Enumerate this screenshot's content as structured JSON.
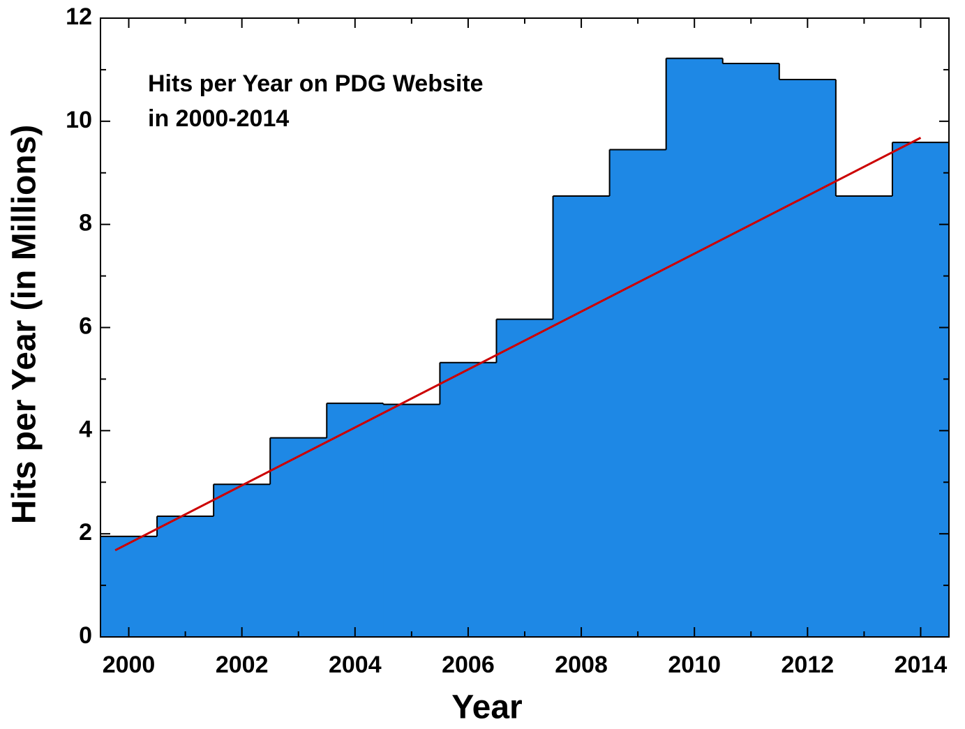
{
  "chart_data": {
    "type": "step",
    "title_lines": [
      "Hits per Year on PDG Website",
      "in 2000-2014"
    ],
    "x_label": "Year",
    "y_label": "Hits per Year (in Millions)",
    "x": [
      2000,
      2001,
      2002,
      2003,
      2004,
      2005,
      2006,
      2007,
      2008,
      2009,
      2010,
      2011,
      2012,
      2013,
      2014
    ],
    "values": [
      1.95,
      2.34,
      2.96,
      3.86,
      4.53,
      4.51,
      5.32,
      6.16,
      8.55,
      9.45,
      11.22,
      11.12,
      10.81,
      8.55,
      9.59
    ],
    "color": "#1e88e5",
    "trend": {
      "x": [
        1999.76,
        2014
      ],
      "values": [
        1.68,
        9.68
      ],
      "color": "#cc0000"
    },
    "xlim": [
      1999.5,
      2014.5
    ],
    "ylim": [
      0,
      12
    ],
    "xticks": [
      2000,
      2002,
      2004,
      2006,
      2008,
      2010,
      2012,
      2014
    ],
    "xminorticks": [
      2001,
      2003,
      2005,
      2007,
      2009,
      2011,
      2013
    ],
    "yticks": [
      0,
      2,
      4,
      6,
      8,
      10,
      12
    ],
    "yminorticks": [
      1,
      3,
      5,
      7,
      9,
      11
    ]
  }
}
